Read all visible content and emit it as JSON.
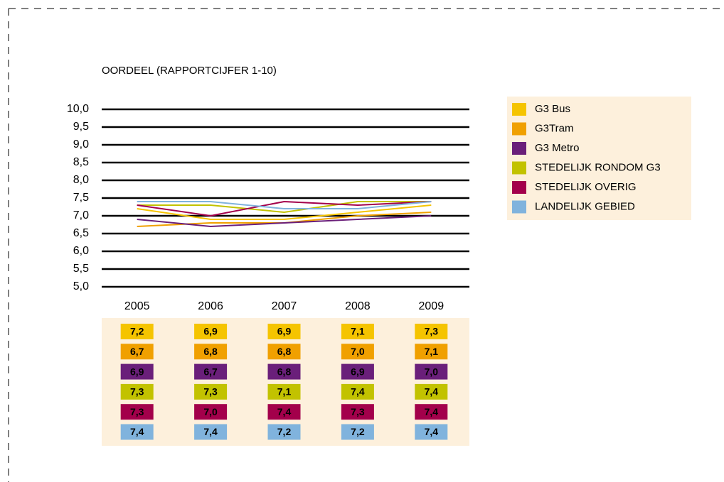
{
  "chart_data": {
    "type": "line",
    "title": "OORDEEL (RAPPORTCIJFER 1-10)",
    "categories": [
      "2005",
      "2006",
      "2007",
      "2008",
      "2009"
    ],
    "series": [
      {
        "name": "G3 Bus",
        "color": "#f5c400",
        "values": [
          7.2,
          6.9,
          6.9,
          7.1,
          7.3
        ],
        "value_labels": [
          "7,2",
          "6,9",
          "6,9",
          "7,1",
          "7,3"
        ]
      },
      {
        "name": "G3Tram",
        "color": "#f0a000",
        "values": [
          6.7,
          6.8,
          6.8,
          7.0,
          7.1
        ],
        "value_labels": [
          "6,7",
          "6,8",
          "6,8",
          "7,0",
          "7,1"
        ]
      },
      {
        "name": "G3 Metro",
        "color": "#6a1f7a",
        "values": [
          6.9,
          6.7,
          6.8,
          6.9,
          7.0
        ],
        "value_labels": [
          "6,9",
          "6,7",
          "6,8",
          "6,9",
          "7,0"
        ]
      },
      {
        "name": "STEDELIJK RONDOM G3",
        "color": "#c2c200",
        "values": [
          7.3,
          7.3,
          7.1,
          7.4,
          7.4
        ],
        "value_labels": [
          "7,3",
          "7,3",
          "7,1",
          "7,4",
          "7,4"
        ]
      },
      {
        "name": "STEDELIJK OVERIG",
        "color": "#a3004b",
        "values": [
          7.3,
          7.0,
          7.4,
          7.3,
          7.4
        ],
        "value_labels": [
          "7,3",
          "7,0",
          "7,4",
          "7,3",
          "7,4"
        ]
      },
      {
        "name": "LANDELIJK GEBIED",
        "color": "#80b3dd",
        "values": [
          7.4,
          7.4,
          7.2,
          7.2,
          7.4
        ],
        "value_labels": [
          "7,4",
          "7,4",
          "7,2",
          "7,2",
          "7,4"
        ]
      }
    ],
    "ylim": [
      5,
      10
    ],
    "yticks": [
      {
        "value": 5,
        "label": "5,0"
      },
      {
        "value": 5.5,
        "label": "5,5"
      },
      {
        "value": 6,
        "label": "6,0"
      },
      {
        "value": 6.5,
        "label": "6,5"
      },
      {
        "value": 7,
        "label": "7,0"
      },
      {
        "value": 7.5,
        "label": "7,5"
      },
      {
        "value": 8,
        "label": "8,0"
      },
      {
        "value": 8.5,
        "label": "8,5"
      },
      {
        "value": 9,
        "label": "9,0"
      },
      {
        "value": 9.5,
        "label": "9,5"
      },
      {
        "value": 10,
        "label": "10,0"
      }
    ],
    "grid": true,
    "legend": "right"
  }
}
